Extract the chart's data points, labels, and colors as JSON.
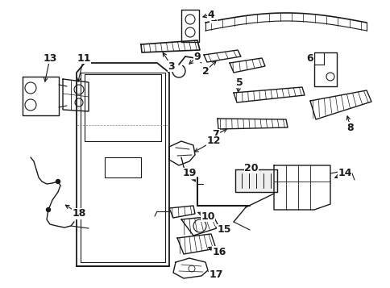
{
  "bg_color": "#ffffff",
  "line_color": "#1a1a1a",
  "fig_width": 4.85,
  "fig_height": 3.57,
  "dpi": 100
}
